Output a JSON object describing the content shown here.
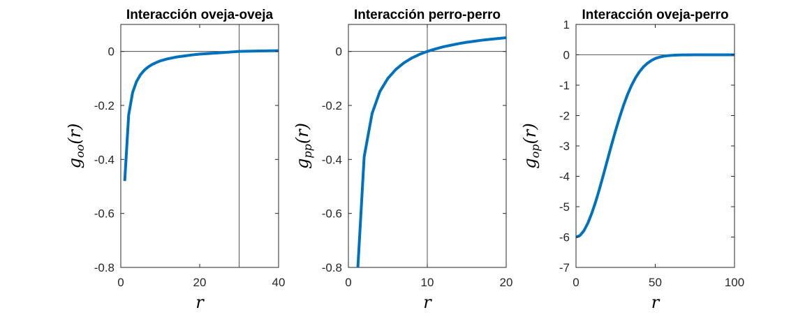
{
  "chart_data": [
    {
      "type": "line",
      "title": "Interacción oveja-oveja",
      "xlabel": "r",
      "ylabel": "g_oo(r)",
      "ylabel_main": "g",
      "ylabel_sub": "oo",
      "ylabel_arg": "(r)",
      "xlim": [
        0,
        40
      ],
      "ylim": [
        -0.8,
        0.1
      ],
      "xticks": [
        0,
        20,
        40
      ],
      "xtick_labels": [
        "0",
        "20",
        "40"
      ],
      "yticks": [
        0,
        -0.2,
        -0.4,
        -0.6,
        -0.8
      ],
      "ytick_labels": [
        "0",
        "-0.2",
        "-0.4",
        "-0.6",
        "-0.8"
      ],
      "hline": 0,
      "vline": 30,
      "color": "#0072BD",
      "series": [
        {
          "x": [
            1,
            2,
            3,
            4,
            5,
            6,
            7,
            8,
            9,
            10,
            12,
            14,
            16,
            18,
            20,
            22,
            25,
            28,
            30,
            32,
            35,
            38,
            40
          ],
          "y": [
            -0.48,
            -0.235,
            -0.152,
            -0.111,
            -0.086,
            -0.069,
            -0.057,
            -0.048,
            -0.041,
            -0.035,
            -0.027,
            -0.021,
            -0.017,
            -0.013,
            -0.01,
            -0.008,
            -0.005,
            -0.002,
            0.0,
            0.0007,
            0.0017,
            0.0024,
            0.0028
          ]
        }
      ]
    },
    {
      "type": "line",
      "title": "Interacción perro-perro",
      "xlabel": "r",
      "ylabel": "g_pp(r)",
      "ylabel_main": "g",
      "ylabel_sub": "pp",
      "ylabel_arg": "(r)",
      "xlim": [
        0,
        20
      ],
      "ylim": [
        -0.8,
        0.1
      ],
      "xticks": [
        0,
        10,
        20
      ],
      "xtick_labels": [
        "0",
        "10",
        "20"
      ],
      "yticks": [
        0,
        -0.2,
        -0.4,
        -0.6,
        -0.8
      ],
      "ytick_labels": [
        "0",
        "-0.2",
        "-0.4",
        "-0.6",
        "-0.8"
      ],
      "hline": 0,
      "vline": 10,
      "color": "#0072BD",
      "series": [
        {
          "x": [
            1.2,
            2,
            3,
            4,
            5,
            6,
            7,
            8,
            9,
            10,
            11,
            12,
            13,
            14,
            15,
            16,
            17,
            18,
            19,
            20
          ],
          "y": [
            -0.8,
            -0.39,
            -0.23,
            -0.148,
            -0.1,
            -0.067,
            -0.043,
            -0.025,
            -0.011,
            0.0,
            0.009,
            0.017,
            0.023,
            0.029,
            0.034,
            0.038,
            0.042,
            0.045,
            0.048,
            0.051
          ]
        }
      ]
    },
    {
      "type": "line",
      "title": "Interacción oveja-perro",
      "xlabel": "r",
      "ylabel": "g_op(r)",
      "ylabel_main": "g",
      "ylabel_sub": "op",
      "ylabel_arg": "(r)",
      "xlim": [
        0,
        100
      ],
      "ylim": [
        -7,
        1
      ],
      "xticks": [
        0,
        50,
        100
      ],
      "xtick_labels": [
        "0",
        "50",
        "100"
      ],
      "yticks": [
        1,
        0,
        -1,
        -2,
        -3,
        -4,
        -5,
        -6,
        -7
      ],
      "ytick_labels": [
        "1",
        "0",
        "-1",
        "-2",
        "-3",
        "-4",
        "-5",
        "-6",
        "-7"
      ],
      "hline": 0,
      "vline": null,
      "color": "#0072BD",
      "series": [
        {
          "x": [
            0,
            2.5,
            5,
            7.5,
            10,
            12.5,
            15,
            17.5,
            20,
            22.5,
            25,
            27.5,
            30,
            32.5,
            35,
            37.5,
            40,
            42.5,
            45,
            47.5,
            50,
            52.5,
            55,
            57.5,
            60,
            62.5,
            65,
            67.5,
            70,
            75,
            80,
            85,
            90,
            95,
            100
          ],
          "y": [
            -6.0,
            -5.95,
            -5.79,
            -5.54,
            -5.21,
            -4.82,
            -4.38,
            -3.91,
            -3.43,
            -2.95,
            -2.49,
            -2.06,
            -1.66,
            -1.31,
            -1.01,
            -0.76,
            -0.56,
            -0.4,
            -0.28,
            -0.19,
            -0.12,
            -0.08,
            -0.05,
            -0.03,
            -0.02,
            -0.01,
            -0.006,
            -0.003,
            -0.002,
            0.0,
            0.0,
            0.0,
            0.0,
            0.0,
            0.0
          ]
        }
      ]
    }
  ]
}
